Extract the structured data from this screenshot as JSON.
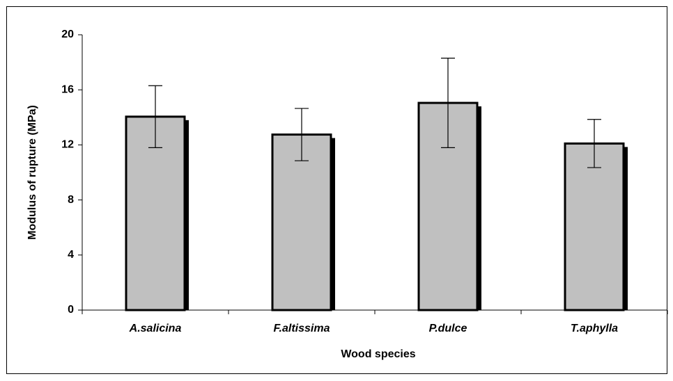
{
  "chart_data": {
    "type": "bar",
    "xlabel": "Wood species",
    "ylabel": "Modulus of rupture (MPa)",
    "categories": [
      "A.salicina",
      "F.altissima",
      "P.dulce",
      "T.aphylla"
    ],
    "values": [
      14.05,
      12.75,
      15.05,
      12.1
    ],
    "errors": [
      2.25,
      1.9,
      3.25,
      1.75
    ],
    "color": "#c0c0c0",
    "ylim": [
      0,
      20
    ],
    "yticks": [
      0,
      4,
      8,
      12,
      16,
      20
    ],
    "grid": false
  }
}
